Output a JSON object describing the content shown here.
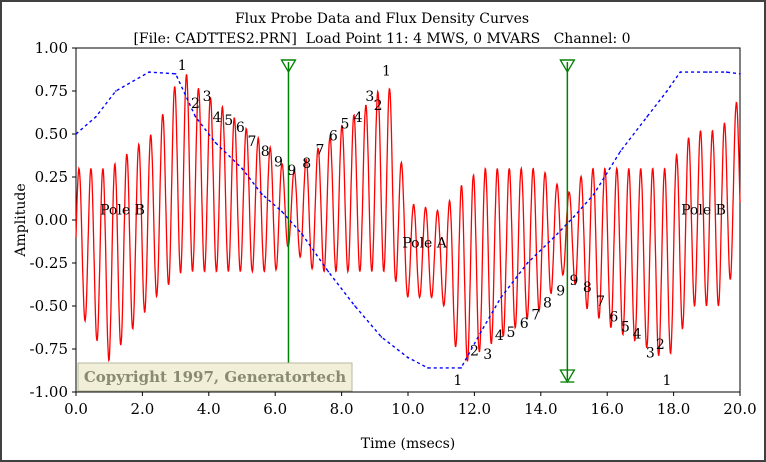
{
  "chart_data": {
    "type": "line",
    "title": "Flux Probe Data and Flux Density Curves",
    "subtitle": "[File: CADTTES2.PRN]  Load Point 11: 4 MWS, 0 MVARS   Channel: 0",
    "xlabel": "Time (msecs)",
    "ylabel": "Amplitude",
    "xlim": [
      0.0,
      20.0
    ],
    "ylim": [
      -1.0,
      1.0
    ],
    "x_ticks": [
      "0.0",
      "2.0",
      "4.0",
      "6.0",
      "8.0",
      "10.0",
      "12.0",
      "14.0",
      "16.0",
      "18.0",
      "20.0"
    ],
    "y_ticks": [
      "1.00",
      "0.75",
      "0.50",
      "0.25",
      "0.00",
      "-0.25",
      "-0.50",
      "-0.75",
      "-1.00"
    ],
    "grid": false,
    "series": [
      {
        "style": "solid",
        "color": "#ff0000",
        "description_values": "flux probe signal",
        "envelope_x": [
          0.0,
          1.0,
          2.4,
          3.2,
          3.6,
          4.4,
          5.2,
          6.0,
          6.4,
          7.2,
          8.0,
          8.8,
          9.4,
          10.0,
          11.0,
          11.6,
          12.2,
          13.0,
          14.0,
          14.8,
          15.4,
          16.2,
          17.0,
          17.8,
          18.6,
          19.4,
          20.0
        ],
        "envelope_top": [
          0.3,
          0.3,
          0.52,
          0.88,
          0.78,
          0.66,
          0.52,
          0.4,
          0.26,
          0.4,
          0.55,
          0.68,
          0.82,
          0.1,
          0.05,
          0.2,
          0.3,
          0.3,
          0.3,
          0.15,
          0.3,
          0.3,
          0.3,
          0.3,
          0.52,
          0.52,
          0.72
        ],
        "envelope_bottom": [
          -0.5,
          -0.82,
          -0.45,
          -0.3,
          -0.3,
          -0.3,
          -0.3,
          -0.3,
          -0.15,
          -0.3,
          -0.3,
          -0.3,
          -0.3,
          -0.45,
          -0.45,
          -0.85,
          -0.76,
          -0.66,
          -0.52,
          -0.28,
          -0.52,
          -0.64,
          -0.72,
          -0.82,
          -0.5,
          -0.5,
          -0.2
        ]
      },
      {
        "style": "dotted",
        "color": "#0000ff",
        "description_values": "flux density curve",
        "x": [
          0.0,
          0.6,
          1.2,
          2.2,
          3.0,
          3.6,
          4.2,
          5.0,
          5.6,
          6.2,
          6.8,
          7.6,
          8.4,
          9.2,
          10.0,
          10.6,
          11.6,
          12.2,
          12.8,
          13.6,
          14.4,
          15.0,
          15.6,
          16.4,
          17.2,
          17.8,
          18.2,
          19.0,
          19.6,
          20.0
        ],
        "y": [
          0.5,
          0.6,
          0.75,
          0.86,
          0.85,
          0.6,
          0.45,
          0.3,
          0.15,
          0.05,
          -0.08,
          -0.3,
          -0.5,
          -0.68,
          -0.8,
          -0.86,
          -0.86,
          -0.65,
          -0.45,
          -0.25,
          -0.1,
          0.02,
          0.15,
          0.4,
          0.6,
          0.75,
          0.86,
          0.86,
          0.86,
          0.85
        ]
      }
    ],
    "cursor_lines_x": [
      6.4,
      14.8
    ],
    "annotations": [
      {
        "text": "Pole B",
        "x": 1.4,
        "y": 0.06
      },
      {
        "text": "Pole A",
        "x": 10.5,
        "y": -0.13
      },
      {
        "text": "Pole B",
        "x": 18.9,
        "y": 0.06
      },
      {
        "text": "1",
        "x": 3.2,
        "y": 0.9
      },
      {
        "text": "2",
        "x": 3.6,
        "y": 0.68
      },
      {
        "text": "3",
        "x": 3.95,
        "y": 0.72
      },
      {
        "text": "4",
        "x": 4.25,
        "y": 0.6
      },
      {
        "text": "5",
        "x": 4.6,
        "y": 0.58
      },
      {
        "text": "6",
        "x": 4.95,
        "y": 0.54
      },
      {
        "text": "7",
        "x": 5.3,
        "y": 0.46
      },
      {
        "text": "8",
        "x": 5.7,
        "y": 0.4
      },
      {
        "text": "9",
        "x": 6.1,
        "y": 0.34
      },
      {
        "text": "9",
        "x": 6.5,
        "y": 0.29
      },
      {
        "text": "8",
        "x": 6.95,
        "y": 0.33
      },
      {
        "text": "7",
        "x": 7.35,
        "y": 0.41
      },
      {
        "text": "6",
        "x": 7.75,
        "y": 0.49
      },
      {
        "text": "5",
        "x": 8.1,
        "y": 0.56
      },
      {
        "text": "4",
        "x": 8.5,
        "y": 0.6
      },
      {
        "text": "3",
        "x": 8.85,
        "y": 0.72
      },
      {
        "text": "2",
        "x": 9.1,
        "y": 0.67
      },
      {
        "text": "1",
        "x": 9.35,
        "y": 0.87
      },
      {
        "text": "1",
        "x": 11.5,
        "y": -0.93
      },
      {
        "text": "2",
        "x": 12.0,
        "y": -0.76
      },
      {
        "text": "3",
        "x": 12.4,
        "y": -0.78
      },
      {
        "text": "4",
        "x": 12.75,
        "y": -0.67
      },
      {
        "text": "5",
        "x": 13.1,
        "y": -0.65
      },
      {
        "text": "6",
        "x": 13.5,
        "y": -0.6
      },
      {
        "text": "7",
        "x": 13.85,
        "y": -0.55
      },
      {
        "text": "8",
        "x": 14.2,
        "y": -0.48
      },
      {
        "text": "9",
        "x": 14.6,
        "y": -0.41
      },
      {
        "text": "9",
        "x": 15.0,
        "y": -0.35
      },
      {
        "text": "8",
        "x": 15.4,
        "y": -0.39
      },
      {
        "text": "7",
        "x": 15.8,
        "y": -0.47
      },
      {
        "text": "6",
        "x": 16.2,
        "y": -0.56
      },
      {
        "text": "5",
        "x": 16.55,
        "y": -0.62
      },
      {
        "text": "4",
        "x": 16.9,
        "y": -0.66
      },
      {
        "text": "3",
        "x": 17.3,
        "y": -0.77
      },
      {
        "text": "2",
        "x": 17.6,
        "y": -0.72
      },
      {
        "text": "1",
        "x": 17.8,
        "y": -0.93
      }
    ],
    "copyright": "Copyright 1997, Generatortech"
  },
  "colors": {
    "signal": "#ff0000",
    "density": "#0000ff",
    "cursor": "#008000",
    "copyright_bg": "#f1efd8",
    "copyright_text": "#8a8a72"
  }
}
